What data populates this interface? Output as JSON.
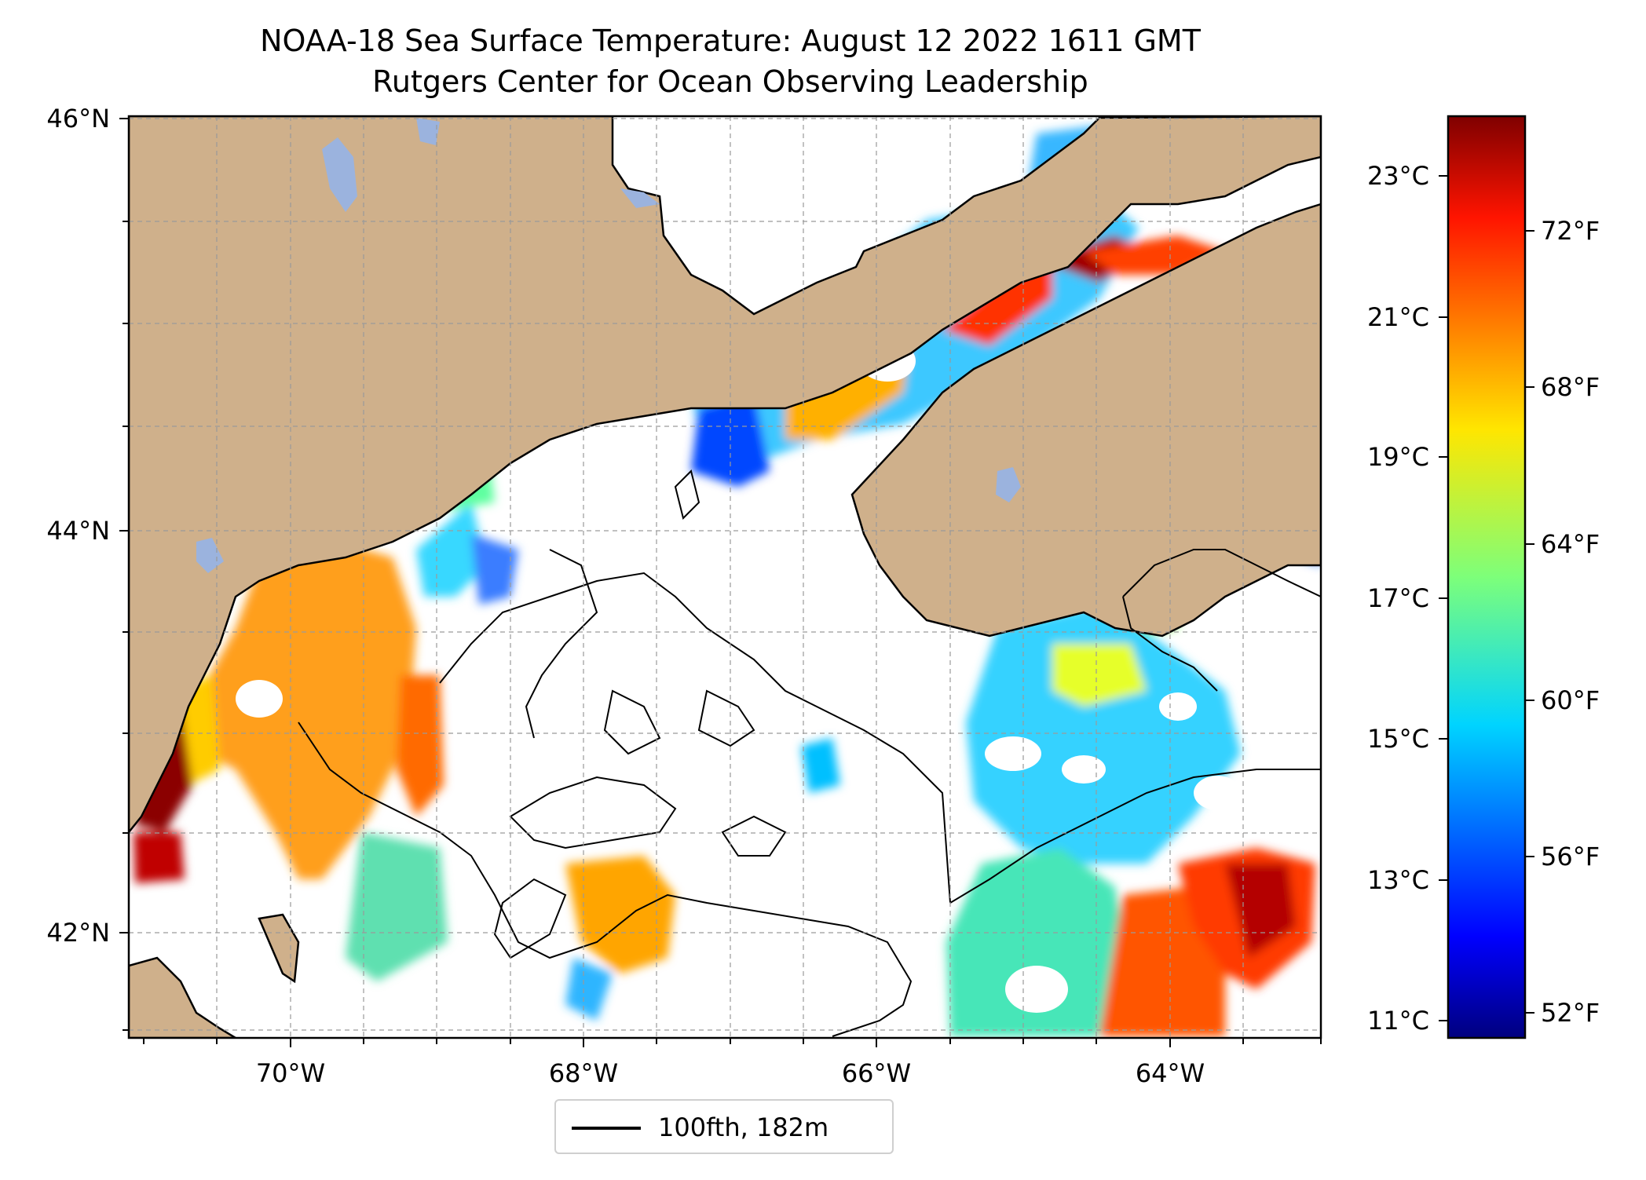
{
  "title": "NOAA-18 Sea Surface Temperature: August 12 2022 1611 GMT",
  "subtitle": "Rutgers Center for Ocean Observing Leadership",
  "map": {
    "lat_labels": [
      "46°N",
      "44°N",
      "42°N"
    ],
    "lon_labels": [
      "70°W",
      "68°W",
      "66°W",
      "64°W"
    ],
    "extent": {
      "lon_min": -71.2,
      "lon_max": -63.0,
      "lat_min": 41.5,
      "lat_max": 46.0
    },
    "land_color": "#cfb08b",
    "lake_color": "#9bb3de",
    "no_data_color": "#ffffff",
    "gridlines": true
  },
  "colorbar": {
    "celsius_labels": [
      "23°C",
      "21°C",
      "19°C",
      "17°C",
      "15°C",
      "13°C",
      "11°C"
    ],
    "fahrenheit_labels": [
      "72°F",
      "68°F",
      "64°F",
      "60°F",
      "56°F",
      "52°F"
    ],
    "colormap": "jet",
    "celsius_range": [
      10.8,
      23.8
    ]
  },
  "legend": {
    "label": "100fth, 182m",
    "line_color": "#000000"
  }
}
